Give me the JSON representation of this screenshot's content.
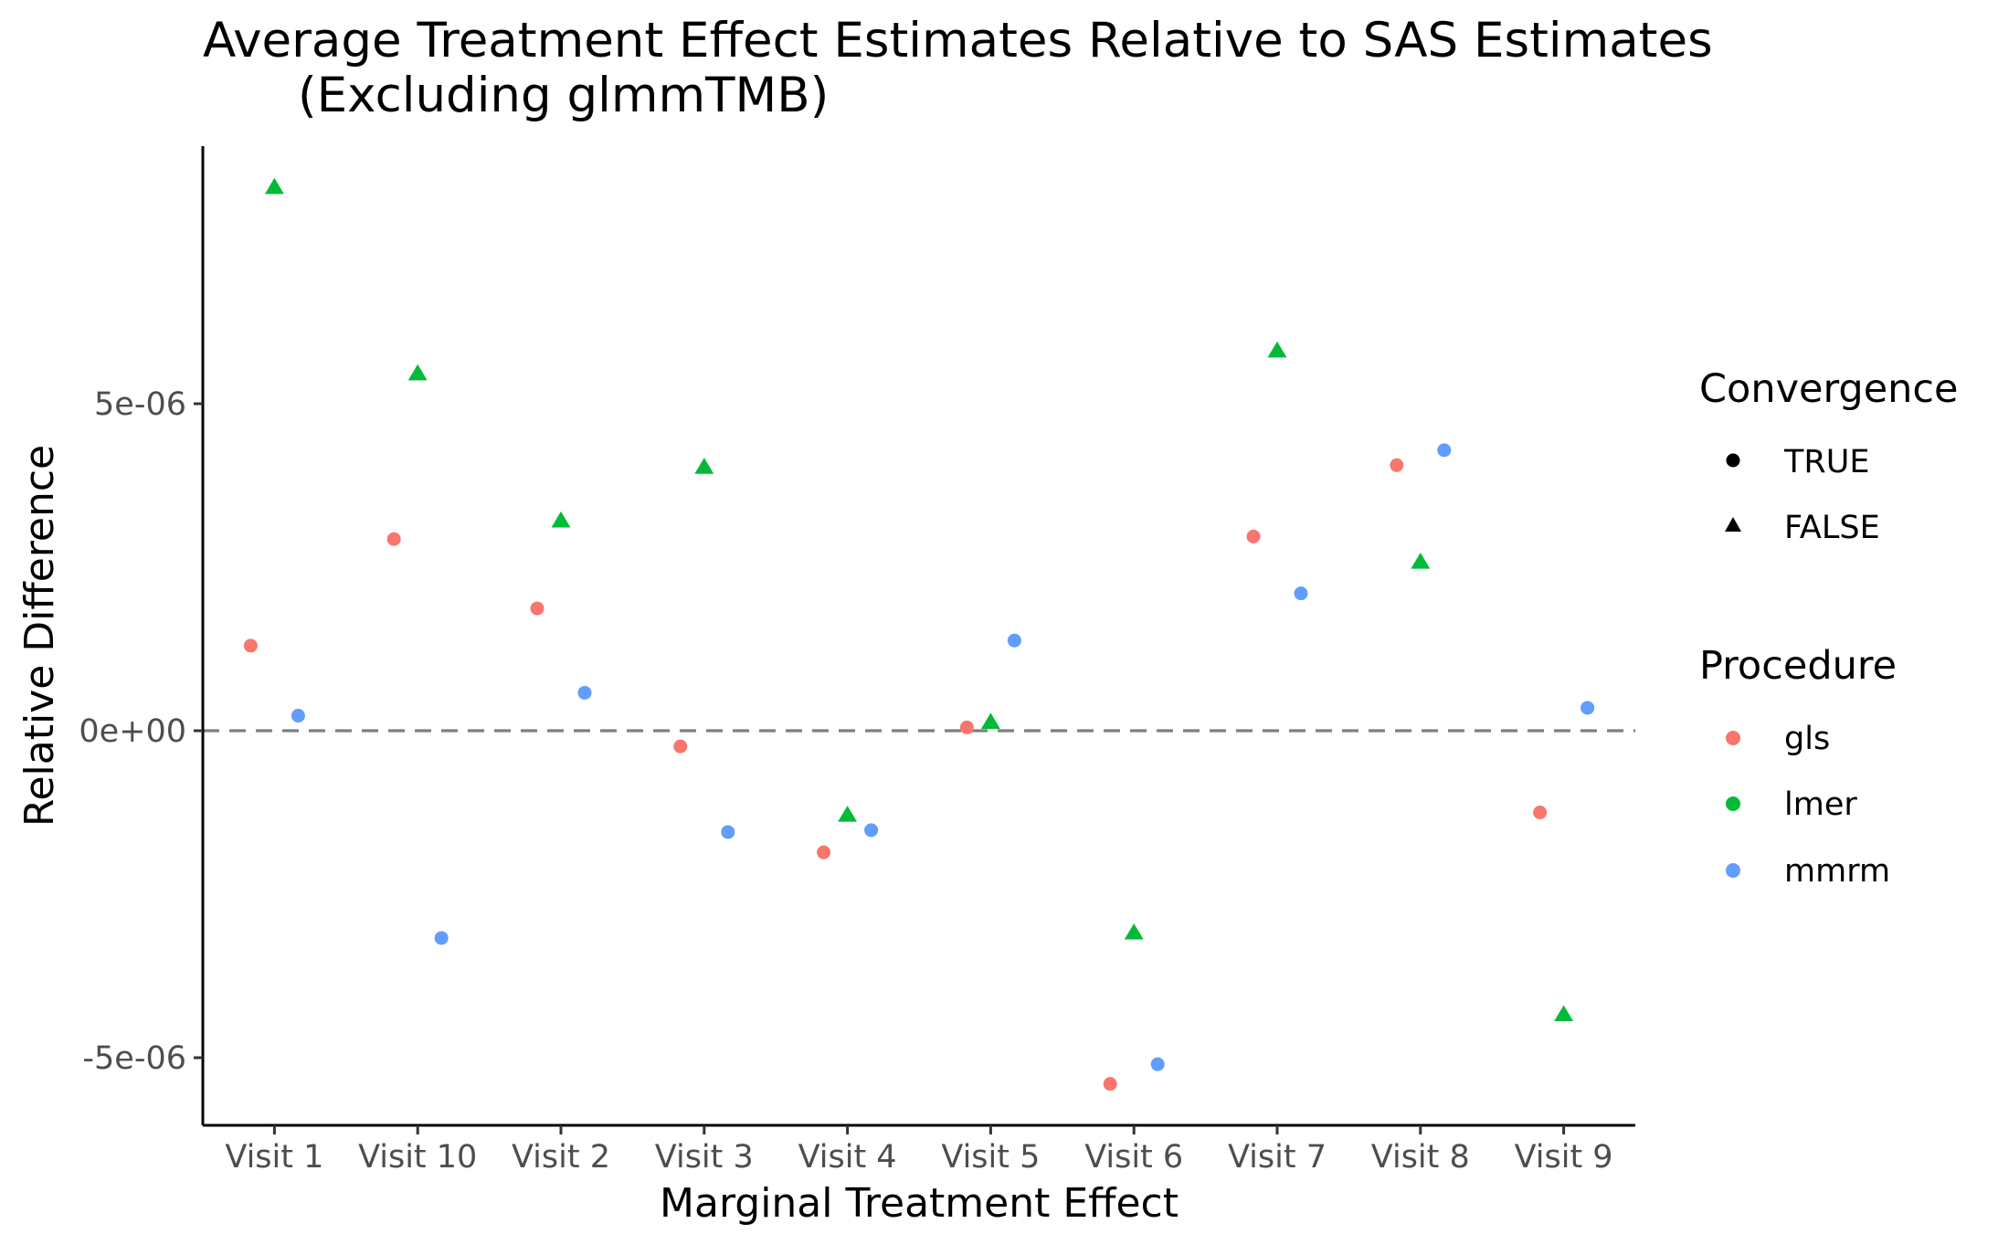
{
  "chart_data": {
    "type": "scatter",
    "title_line1": "Average Treatment Effect Estimates Relative to SAS Estimates",
    "title_line2": "(Excluding glmmTMB)",
    "xlabel": "Marginal Treatment Effect",
    "ylabel": "Relative Difference",
    "categories": [
      "Visit 1",
      "Visit 10",
      "Visit 2",
      "Visit 3",
      "Visit 4",
      "Visit 5",
      "Visit 6",
      "Visit 7",
      "Visit 8",
      "Visit 9"
    ],
    "yticks": [
      -5e-06,
      0,
      5e-06
    ],
    "ytick_labels": [
      "-5e-06",
      "0e+00",
      "5e-06"
    ],
    "ylim": [
      -6e-06,
      8.8e-06
    ],
    "reference_line": 0,
    "legend_position": "right",
    "legend": {
      "convergence_title": "Convergence",
      "convergence_entries": [
        {
          "label": "TRUE",
          "shape": "circle"
        },
        {
          "label": "FALSE",
          "shape": "triangle"
        }
      ],
      "procedure_title": "Procedure",
      "procedure_entries": [
        {
          "label": "gls",
          "color": "#F8766D"
        },
        {
          "label": "lmer",
          "color": "#00BA38"
        },
        {
          "label": "mmrm",
          "color": "#619CFF"
        }
      ]
    },
    "series": [
      {
        "name": "gls",
        "color": "#F8766D",
        "converged": [
          true,
          true,
          true,
          true,
          true,
          true,
          true,
          true,
          true,
          true
        ],
        "values": [
          1.3e-06,
          2.93e-06,
          1.87e-06,
          -2.4e-07,
          -1.86e-06,
          5e-08,
          -5.4e-06,
          2.97e-06,
          4.06e-06,
          -1.25e-06
        ]
      },
      {
        "name": "lmer",
        "color": "#00BA38",
        "converged": [
          false,
          false,
          false,
          false,
          false,
          false,
          false,
          false,
          false,
          false
        ],
        "values": [
          8.3e-06,
          5.45e-06,
          3.2e-06,
          4.02e-06,
          -1.3e-06,
          1.2e-07,
          -3.1e-06,
          5.8e-06,
          2.57e-06,
          -4.35e-06
        ]
      },
      {
        "name": "mmrm",
        "color": "#619CFF",
        "converged": [
          true,
          true,
          true,
          true,
          true,
          true,
          true,
          true,
          true,
          true
        ],
        "values": [
          2.3e-07,
          -3.17e-06,
          5.8e-07,
          -1.55e-06,
          -1.52e-06,
          1.38e-06,
          -5.1e-06,
          2.1e-06,
          4.29e-06,
          3.5e-07
        ]
      }
    ]
  }
}
